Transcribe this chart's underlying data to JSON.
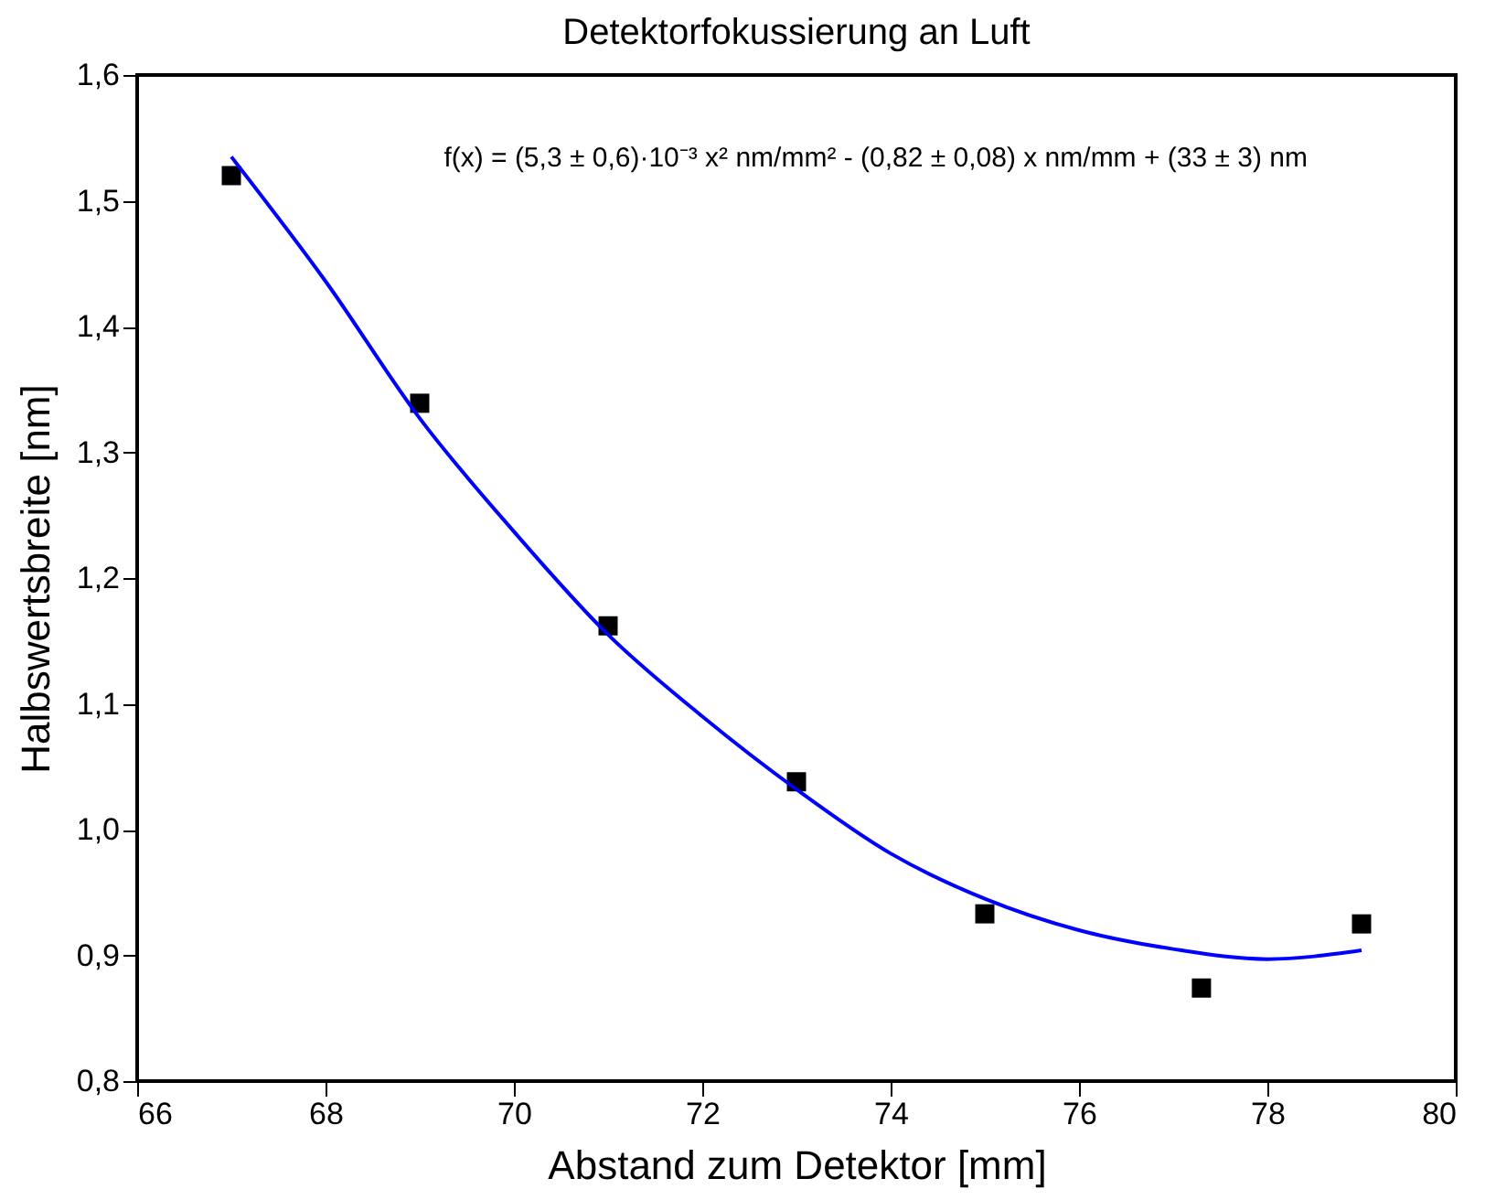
{
  "chart_data": {
    "type": "scatter",
    "title": "Detektorfokussierung an Luft",
    "xlabel": "Abstand zum Detektor [mm]",
    "ylabel": "Halbswertsbreite [nm]",
    "annotations": [
      {
        "text": "f(x) = (5,3 ± 0,6)·10⁻³ x² nm/mm²  -  (0,82 ± 0,08) x nm/mm  +  (33 ± 3) nm"
      }
    ],
    "x": [
      67,
      69,
      71,
      73,
      75,
      77.3,
      79
    ],
    "series": [
      {
        "type": "scatter",
        "color": "#000000",
        "marker": "square",
        "values": [
          1.52,
          1.339,
          1.162,
          1.038,
          0.933,
          0.874,
          0.925
        ]
      },
      {
        "type": "line",
        "color": "#0000ff",
        "marker": "none",
        "line_style": "solid",
        "x": [
          67,
          68,
          69,
          70,
          71,
          72,
          73,
          74,
          75,
          76,
          77,
          78,
          79
        ],
        "values": [
          1.535,
          1.436,
          1.327,
          1.237,
          1.155,
          1.09,
          1.032,
          0.981,
          0.945,
          0.92,
          0.905,
          0.897,
          0.904
        ]
      }
    ],
    "xlim": [
      66,
      80
    ],
    "xticks": [
      66,
      68,
      70,
      72,
      74,
      76,
      78,
      80
    ],
    "ylim": [
      0.8,
      1.6
    ],
    "yticks": [
      {
        "value": 0.8,
        "label": "0,8"
      },
      {
        "value": 0.9,
        "label": "0,9"
      },
      {
        "value": 1.0,
        "label": "1,0"
      },
      {
        "value": 1.1,
        "label": "1,1"
      },
      {
        "value": 1.2,
        "label": "1,2"
      },
      {
        "value": 1.3,
        "label": "1,3"
      },
      {
        "value": 1.4,
        "label": "1,4"
      },
      {
        "value": 1.5,
        "label": "1,5"
      },
      {
        "value": 1.6,
        "label": "1,6"
      }
    ],
    "grid": false,
    "legend": false
  }
}
